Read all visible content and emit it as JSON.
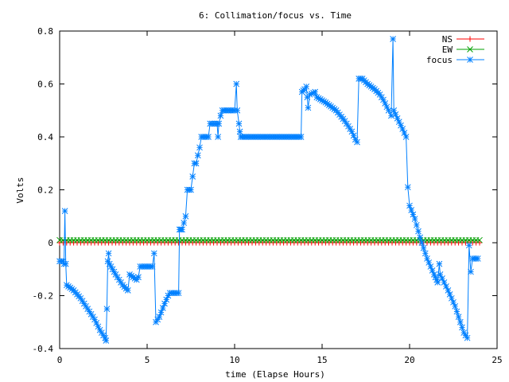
{
  "chart_data": {
    "type": "line",
    "title": "6: Collimation/focus vs. Time",
    "xlabel": "time (Elapse Hours)",
    "ylabel": "Volts",
    "xlim": [
      0,
      25
    ],
    "ylim": [
      -0.4,
      0.8
    ],
    "xticks": [
      0,
      5,
      10,
      15,
      20,
      25
    ],
    "xtick_labels": [
      "0",
      "5",
      "10",
      "15",
      "20",
      "25"
    ],
    "yticks": [
      -0.4,
      -0.2,
      0,
      0.2,
      0.4,
      0.6,
      0.8
    ],
    "ytick_labels": [
      "-0.4",
      "-0.2",
      "0",
      "0.2",
      "0.4",
      "0.6",
      "0.8"
    ],
    "grid": false,
    "legend_position": "top-right",
    "series": [
      {
        "name": "NS",
        "color": "#ff0000",
        "marker": "plus",
        "x_start": 0,
        "x_end": 24,
        "x_step": 0.2,
        "constant": 0.0
      },
      {
        "name": "EW",
        "color": "#00a000",
        "marker": "cross",
        "x_start": 0,
        "x_end": 24,
        "x_step": 0.2,
        "constant": 0.01
      },
      {
        "name": "focus",
        "color": "#0080ff",
        "marker": "star",
        "keypoints": [
          [
            0.0,
            -0.07
          ],
          [
            0.2,
            -0.07
          ],
          [
            0.25,
            -0.08
          ],
          [
            0.3,
            0.12
          ],
          [
            0.35,
            -0.08
          ],
          [
            0.4,
            -0.16
          ],
          [
            0.8,
            -0.18
          ],
          [
            1.2,
            -0.21
          ],
          [
            1.6,
            -0.25
          ],
          [
            2.0,
            -0.29
          ],
          [
            2.3,
            -0.33
          ],
          [
            2.6,
            -0.36
          ],
          [
            2.65,
            -0.37
          ],
          [
            2.7,
            -0.25
          ],
          [
            2.75,
            -0.07
          ],
          [
            2.8,
            -0.04
          ],
          [
            2.85,
            -0.08
          ],
          [
            3.2,
            -0.12
          ],
          [
            3.6,
            -0.16
          ],
          [
            3.9,
            -0.18
          ],
          [
            4.0,
            -0.12
          ],
          [
            4.4,
            -0.14
          ],
          [
            4.5,
            -0.13
          ],
          [
            4.6,
            -0.09
          ],
          [
            5.3,
            -0.09
          ],
          [
            5.4,
            -0.04
          ],
          [
            5.5,
            -0.3
          ],
          [
            5.7,
            -0.28
          ],
          [
            6.0,
            -0.23
          ],
          [
            6.2,
            -0.2
          ],
          [
            6.3,
            -0.19
          ],
          [
            6.8,
            -0.19
          ],
          [
            6.85,
            0.05
          ],
          [
            7.0,
            0.05
          ],
          [
            7.2,
            0.1
          ],
          [
            7.3,
            0.2
          ],
          [
            7.5,
            0.2
          ],
          [
            7.6,
            0.25
          ],
          [
            7.7,
            0.3
          ],
          [
            7.8,
            0.3
          ],
          [
            8.0,
            0.36
          ],
          [
            8.1,
            0.4
          ],
          [
            8.5,
            0.4
          ],
          [
            8.6,
            0.45
          ],
          [
            9.0,
            0.45
          ],
          [
            9.05,
            0.4
          ],
          [
            9.1,
            0.45
          ],
          [
            9.2,
            0.48
          ],
          [
            9.3,
            0.5
          ],
          [
            10.0,
            0.5
          ],
          [
            10.1,
            0.6
          ],
          [
            10.15,
            0.5
          ],
          [
            10.25,
            0.45
          ],
          [
            10.3,
            0.42
          ],
          [
            10.35,
            0.4
          ],
          [
            13.8,
            0.4
          ],
          [
            13.85,
            0.57
          ],
          [
            14.0,
            0.58
          ],
          [
            14.1,
            0.59
          ],
          [
            14.15,
            0.55
          ],
          [
            14.2,
            0.51
          ],
          [
            14.3,
            0.56
          ],
          [
            14.6,
            0.57
          ],
          [
            14.7,
            0.55
          ],
          [
            15.2,
            0.53
          ],
          [
            15.8,
            0.5
          ],
          [
            16.3,
            0.46
          ],
          [
            16.7,
            0.42
          ],
          [
            16.9,
            0.39
          ],
          [
            17.0,
            0.38
          ],
          [
            17.1,
            0.62
          ],
          [
            17.3,
            0.62
          ],
          [
            17.6,
            0.6
          ],
          [
            18.0,
            0.58
          ],
          [
            18.3,
            0.56
          ],
          [
            18.5,
            0.54
          ],
          [
            18.8,
            0.5
          ],
          [
            18.95,
            0.48
          ],
          [
            19.05,
            0.77
          ],
          [
            19.1,
            0.5
          ],
          [
            19.3,
            0.47
          ],
          [
            19.6,
            0.43
          ],
          [
            19.8,
            0.4
          ],
          [
            19.9,
            0.21
          ],
          [
            20.0,
            0.14
          ],
          [
            20.3,
            0.09
          ],
          [
            20.6,
            0.02
          ],
          [
            20.8,
            -0.02
          ],
          [
            21.0,
            -0.06
          ],
          [
            21.2,
            -0.09
          ],
          [
            21.4,
            -0.12
          ],
          [
            21.55,
            -0.14
          ],
          [
            21.6,
            -0.15
          ],
          [
            21.7,
            -0.08
          ],
          [
            21.75,
            -0.12
          ],
          [
            22.2,
            -0.18
          ],
          [
            22.6,
            -0.24
          ],
          [
            22.9,
            -0.3
          ],
          [
            23.1,
            -0.34
          ],
          [
            23.3,
            -0.36
          ],
          [
            23.4,
            -0.01
          ],
          [
            23.5,
            -0.11
          ],
          [
            23.6,
            -0.06
          ],
          [
            23.9,
            -0.06
          ]
        ]
      }
    ]
  }
}
